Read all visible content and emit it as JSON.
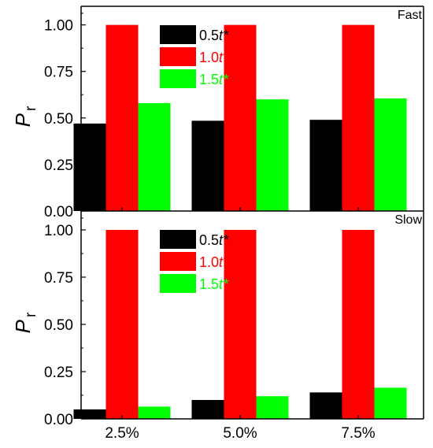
{
  "chart_data": [
    {
      "type": "bar",
      "title": "Fast",
      "ylabel_main": "P",
      "ylabel_sub": "r",
      "categories": [
        "2.5%",
        "5.0%",
        "7.5%"
      ],
      "ylim": [
        0,
        1.1
      ],
      "yticks": [
        "0.00",
        "0.25",
        "0.50",
        "0.75",
        "1.00"
      ],
      "ytick_values": [
        0,
        0.25,
        0.5,
        0.75,
        1.0
      ],
      "minor_ytick_values": [
        0.125,
        0.375,
        0.625,
        0.875,
        1.0625
      ],
      "legend_position": "top-center",
      "series": [
        {
          "name_prefix": "0.5",
          "name_var": "t*",
          "color": "#000000",
          "values": [
            0.47,
            0.485,
            0.49
          ]
        },
        {
          "name_prefix": "1.0",
          "name_var": "t*",
          "color": "#ff0000",
          "values": [
            1.0,
            1.0,
            1.0
          ]
        },
        {
          "name_prefix": "1.5",
          "name_var": "t*",
          "color": "#00ff00",
          "values": [
            0.58,
            0.6,
            0.605
          ]
        }
      ]
    },
    {
      "type": "bar",
      "title": "Slow",
      "ylabel_main": "P",
      "ylabel_sub": "r",
      "categories": [
        "2.5%",
        "5.0%",
        "7.5%"
      ],
      "ylim": [
        0,
        1.1
      ],
      "yticks": [
        "0.00",
        "0.25",
        "0.50",
        "0.75",
        "1.00"
      ],
      "ytick_values": [
        0,
        0.25,
        0.5,
        0.75,
        1.0
      ],
      "minor_ytick_values": [
        0.125,
        0.375,
        0.625,
        0.875,
        1.0625
      ],
      "legend_position": "top-center",
      "series": [
        {
          "name_prefix": "0.5",
          "name_var": "t*",
          "color": "#000000",
          "values": [
            0.05,
            0.1,
            0.14
          ]
        },
        {
          "name_prefix": "1.0",
          "name_var": "t*",
          "color": "#ff0000",
          "values": [
            1.0,
            1.0,
            1.0
          ]
        },
        {
          "name_prefix": "1.5",
          "name_var": "t*",
          "color": "#00ff00",
          "values": [
            0.065,
            0.12,
            0.165
          ]
        }
      ]
    }
  ]
}
